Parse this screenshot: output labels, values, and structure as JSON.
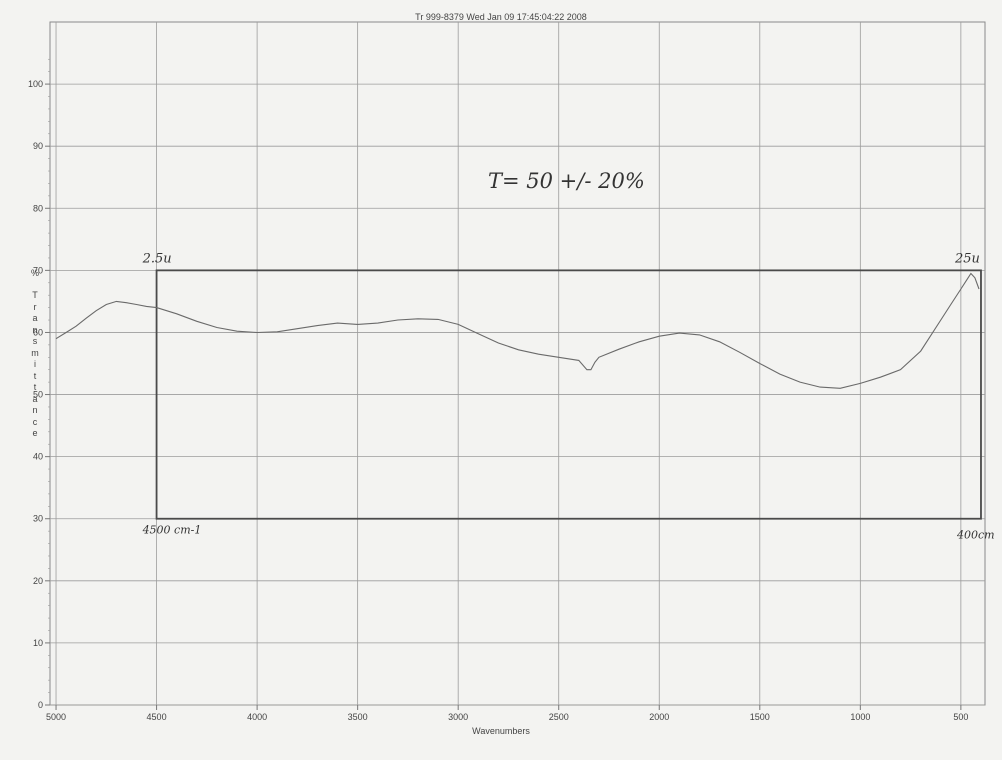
{
  "header": "Tr 999-8379   Wed Jan 09 17:45:04:22 2008",
  "chart_data": {
    "type": "line",
    "title": "",
    "xlabel": "Wavenumbers",
    "ylabel": "%Transmittance",
    "ylabel_prefix": "%",
    "ylabel_letters": [
      "T",
      "r",
      "a",
      "n",
      "s",
      "m",
      "i",
      "t",
      "t",
      "a",
      "n",
      "c",
      "e"
    ],
    "xlim": [
      5030,
      380
    ],
    "ylim": [
      0,
      110
    ],
    "x_ticks": [
      5000,
      4500,
      4000,
      3500,
      3000,
      2500,
      2000,
      1500,
      1000,
      500
    ],
    "y_ticks": [
      0,
      10,
      20,
      30,
      40,
      50,
      60,
      70,
      80,
      90,
      100
    ],
    "grid": true,
    "series": [
      {
        "x": [
          5000,
          4950,
          4900,
          4850,
          4800,
          4750,
          4700,
          4650,
          4600,
          4550,
          4500,
          4400,
          4300,
          4200,
          4100,
          4000,
          3900,
          3800,
          3700,
          3600,
          3500,
          3400,
          3300,
          3200,
          3100,
          3000,
          2900,
          2800,
          2700,
          2600,
          2500,
          2400,
          2360,
          2340,
          2320,
          2300,
          2200,
          2100,
          2000,
          1900,
          1800,
          1700,
          1600,
          1500,
          1400,
          1300,
          1200,
          1100,
          1000,
          900,
          800,
          700,
          600,
          550,
          500,
          470,
          450,
          430,
          410
        ],
        "y": [
          59.0,
          60.0,
          61.0,
          62.3,
          63.5,
          64.5,
          65.0,
          64.8,
          64.5,
          64.2,
          64.0,
          63.0,
          61.8,
          60.8,
          60.2,
          60.0,
          60.1,
          60.6,
          61.1,
          61.5,
          61.3,
          61.5,
          62.0,
          62.2,
          62.1,
          61.3,
          59.8,
          58.3,
          57.2,
          56.5,
          56.0,
          55.5,
          54.0,
          54.0,
          55.2,
          56.0,
          57.3,
          58.5,
          59.4,
          59.9,
          59.6,
          58.5,
          56.8,
          55.0,
          53.3,
          52.0,
          51.2,
          51.0,
          51.8,
          52.8,
          54.0,
          57.0,
          62.0,
          64.5,
          67.0,
          68.5,
          69.5,
          68.8,
          67.0
        ]
      }
    ],
    "annotations": {
      "note": "T= 50 +/- 20%",
      "box_x": [
        4500,
        400
      ],
      "box_y": [
        30,
        70
      ],
      "top_left": "2.5u",
      "top_right": "25u",
      "bottom_left": "4500 cm-1",
      "bottom_right": "400cm"
    },
    "colors": {
      "grid": "#9c9c9c",
      "curve": "#6a6a6a",
      "box": "#4a4a4a"
    }
  }
}
